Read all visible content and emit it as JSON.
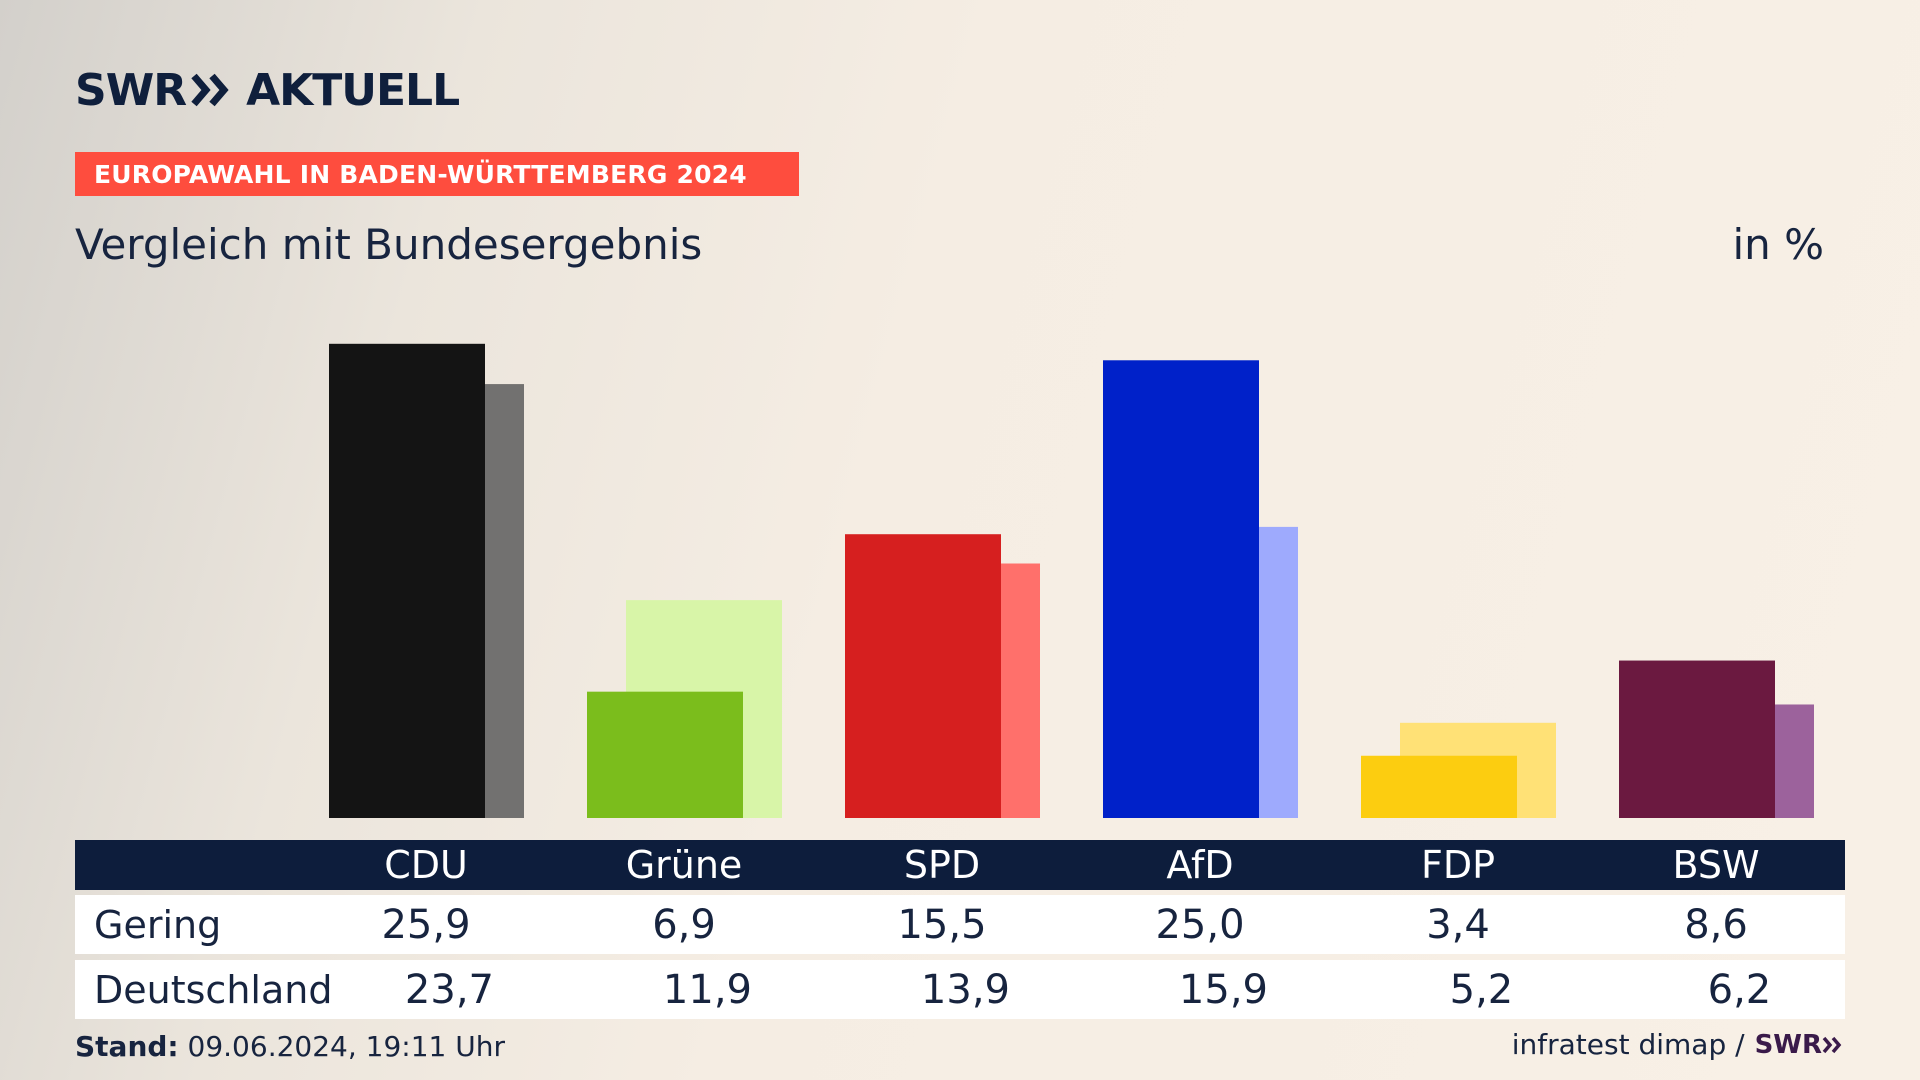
{
  "brand": {
    "swr": "SWR",
    "aktuell": "AKTUELL"
  },
  "banner": "EUROPAWAHL IN BADEN-WÜRTTEMBERG 2024",
  "subtitle": "Vergleich mit Bundesergebnis",
  "unit": "in %",
  "table": {
    "rows": [
      {
        "label": "Gering",
        "values": [
          "25,9",
          "6,9",
          "15,5",
          "25,0",
          "3,4",
          "8,6"
        ]
      },
      {
        "label": "Deutschland",
        "values": [
          "23,7",
          "11,9",
          "13,9",
          "15,9",
          "5,2",
          "6,2"
        ]
      }
    ]
  },
  "footer": {
    "stand_label": "Stand:",
    "stand_value": "09.06.2024, 19:11 Uhr",
    "source": "infratest dimap /",
    "source_brand": "SWR"
  },
  "chart_data": {
    "type": "bar",
    "categories": [
      "CDU",
      "Grüne",
      "SPD",
      "AfD",
      "FDP",
      "BSW"
    ],
    "series": [
      {
        "name": "Gering",
        "values": [
          25.9,
          6.9,
          15.5,
          25.0,
          3.4,
          8.6
        ]
      },
      {
        "name": "Deutschland",
        "values": [
          23.7,
          11.9,
          13.9,
          15.9,
          5.2,
          6.2
        ]
      }
    ],
    "colors_primary": [
      "#141414",
      "#7bbd1c",
      "#d61f1f",
      "#0021c9",
      "#fccd10",
      "#6b1940"
    ],
    "colors_secondary": [
      "#727170",
      "#d8f5a8",
      "#ff706b",
      "#9eaafd",
      "#ffe176",
      "#9c629c"
    ],
    "ylabel": "",
    "unit": "%",
    "ylim": [
      0,
      27.2
    ]
  }
}
